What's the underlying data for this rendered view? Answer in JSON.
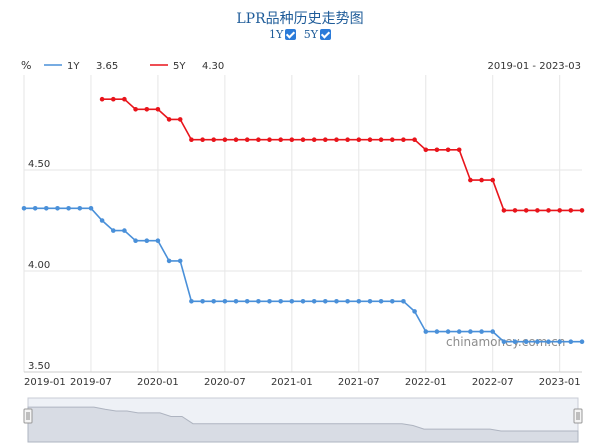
{
  "title": "LPR品种历史走势图",
  "toggles": [
    {
      "label": "1Y",
      "checked": true
    },
    {
      "label": "5Y",
      "checked": true
    }
  ],
  "unit": "%",
  "date_range": "2019-01 - 2023-03",
  "watermark": "chinamoney.com.cn",
  "colors": {
    "1Y": "#4a90d9",
    "5Y": "#e8141b",
    "grid": "#e6e6e6",
    "navigator": "#d8dce4"
  },
  "chart_data": {
    "type": "line",
    "title": "LPR品种历史走势图",
    "x_tick_labels": [
      "2019-01",
      "2019-07",
      "2020-01",
      "2020-07",
      "2021-01",
      "2021-07",
      "2022-01",
      "2022-07",
      "2023-01"
    ],
    "y_tick_labels": [
      "3.50",
      "4.00",
      "4.50"
    ],
    "ylim": [
      3.5,
      4.97
    ],
    "x_range": [
      "2019-01",
      "2023-03"
    ],
    "grid": true,
    "legend_position": "top-left",
    "series": [
      {
        "name": "1Y",
        "latest": "3.65",
        "dates": [
          "2019-01",
          "2019-02",
          "2019-03",
          "2019-04",
          "2019-05",
          "2019-06",
          "2019-07",
          "2019-08",
          "2019-09",
          "2019-10",
          "2019-11",
          "2019-12",
          "2020-01",
          "2020-02",
          "2020-03",
          "2020-04",
          "2020-05",
          "2020-06",
          "2020-07",
          "2020-08",
          "2020-09",
          "2020-10",
          "2020-11",
          "2020-12",
          "2021-01",
          "2021-02",
          "2021-03",
          "2021-04",
          "2021-05",
          "2021-06",
          "2021-07",
          "2021-08",
          "2021-09",
          "2021-10",
          "2021-11",
          "2021-12",
          "2022-01",
          "2022-02",
          "2022-03",
          "2022-04",
          "2022-05",
          "2022-06",
          "2022-07",
          "2022-08",
          "2022-09",
          "2022-10",
          "2022-11",
          "2022-12",
          "2023-01",
          "2023-02",
          "2023-03"
        ],
        "values": [
          4.31,
          4.31,
          4.31,
          4.31,
          4.31,
          4.31,
          4.31,
          4.25,
          4.2,
          4.2,
          4.15,
          4.15,
          4.15,
          4.05,
          4.05,
          3.85,
          3.85,
          3.85,
          3.85,
          3.85,
          3.85,
          3.85,
          3.85,
          3.85,
          3.85,
          3.85,
          3.85,
          3.85,
          3.85,
          3.85,
          3.85,
          3.85,
          3.85,
          3.85,
          3.85,
          3.8,
          3.7,
          3.7,
          3.7,
          3.7,
          3.7,
          3.7,
          3.7,
          3.65,
          3.65,
          3.65,
          3.65,
          3.65,
          3.65,
          3.65,
          3.65
        ]
      },
      {
        "name": "5Y",
        "latest": "4.30",
        "dates": [
          "2019-08",
          "2019-09",
          "2019-10",
          "2019-11",
          "2019-12",
          "2020-01",
          "2020-02",
          "2020-03",
          "2020-04",
          "2020-05",
          "2020-06",
          "2020-07",
          "2020-08",
          "2020-09",
          "2020-10",
          "2020-11",
          "2020-12",
          "2021-01",
          "2021-02",
          "2021-03",
          "2021-04",
          "2021-05",
          "2021-06",
          "2021-07",
          "2021-08",
          "2021-09",
          "2021-10",
          "2021-11",
          "2021-12",
          "2022-01",
          "2022-02",
          "2022-03",
          "2022-04",
          "2022-05",
          "2022-06",
          "2022-07",
          "2022-08",
          "2022-09",
          "2022-10",
          "2022-11",
          "2022-12",
          "2023-01",
          "2023-02",
          "2023-03"
        ],
        "values": [
          4.85,
          4.85,
          4.85,
          4.8,
          4.8,
          4.8,
          4.75,
          4.75,
          4.65,
          4.65,
          4.65,
          4.65,
          4.65,
          4.65,
          4.65,
          4.65,
          4.65,
          4.65,
          4.65,
          4.65,
          4.65,
          4.65,
          4.65,
          4.65,
          4.65,
          4.65,
          4.65,
          4.65,
          4.65,
          4.6,
          4.6,
          4.6,
          4.6,
          4.45,
          4.45,
          4.45,
          4.3,
          4.3,
          4.3,
          4.3,
          4.3,
          4.3,
          4.3,
          4.3
        ]
      }
    ]
  }
}
